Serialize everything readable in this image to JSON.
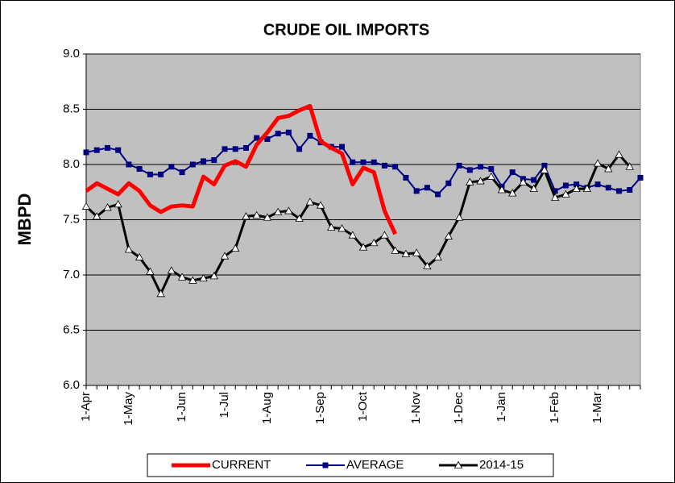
{
  "chart_data": {
    "type": "line",
    "title": "CRUDE OIL IMPORTS",
    "y_label": "MBPD",
    "categories": [
      "1-Apr",
      null,
      null,
      null,
      "1-May",
      null,
      null,
      null,
      null,
      "1-Jun",
      null,
      null,
      null,
      "1-Jul",
      null,
      null,
      null,
      "1-Aug",
      null,
      null,
      null,
      null,
      "1-Sep",
      null,
      null,
      null,
      "1-Oct",
      null,
      null,
      null,
      null,
      "1-Nov",
      null,
      null,
      null,
      "1-Dec",
      null,
      null,
      null,
      "1-Jan",
      null,
      null,
      null,
      null,
      "1-Feb",
      null,
      null,
      null,
      "1-Mar",
      null,
      null,
      null,
      null
    ],
    "series": [
      {
        "name": "CURRENT",
        "color": "#ff0000",
        "marker": "none",
        "values": [
          7.76,
          7.83,
          7.78,
          7.73,
          7.83,
          7.76,
          7.63,
          7.57,
          7.62,
          7.63,
          7.62,
          7.89,
          7.82,
          7.99,
          8.03,
          7.98,
          8.18,
          8.29,
          8.42,
          8.44,
          8.49,
          8.53,
          8.21,
          8.15,
          8.1,
          7.82,
          7.97,
          7.93,
          7.58,
          7.37,
          null,
          null,
          null,
          null,
          null,
          null,
          null,
          null,
          null,
          null,
          null,
          null,
          null,
          null,
          null,
          null,
          null,
          null,
          null,
          null,
          null,
          null,
          null
        ]
      },
      {
        "name": "AVERAGE",
        "color": "#000080",
        "marker": "square",
        "values": [
          8.11,
          8.13,
          8.15,
          8.13,
          8.0,
          7.96,
          7.91,
          7.91,
          7.98,
          7.93,
          8.0,
          8.03,
          8.04,
          8.14,
          8.14,
          8.15,
          8.24,
          8.23,
          8.28,
          8.29,
          8.14,
          8.26,
          8.2,
          8.16,
          8.16,
          8.02,
          8.02,
          8.02,
          7.99,
          7.98,
          7.88,
          7.76,
          7.79,
          7.73,
          7.83,
          7.99,
          7.95,
          7.98,
          7.96,
          7.8,
          7.93,
          7.87,
          7.86,
          7.99,
          7.76,
          7.81,
          7.82,
          7.79,
          7.82,
          7.79,
          7.76,
          7.77,
          7.88
        ]
      },
      {
        "name": "2014-15",
        "color": "#000000",
        "marker": "triangle",
        "values": [
          7.62,
          7.53,
          7.61,
          7.64,
          7.23,
          7.16,
          7.03,
          6.83,
          7.04,
          6.98,
          6.95,
          6.97,
          6.99,
          7.17,
          7.24,
          7.53,
          7.54,
          7.52,
          7.57,
          7.58,
          7.51,
          7.66,
          7.63,
          7.43,
          7.42,
          7.36,
          7.25,
          7.29,
          7.36,
          7.22,
          7.19,
          7.2,
          7.08,
          7.16,
          7.35,
          7.52,
          7.84,
          7.85,
          7.89,
          7.77,
          7.74,
          7.84,
          7.78,
          7.95,
          7.7,
          7.73,
          7.78,
          7.78,
          8.01,
          7.96,
          8.09,
          7.98,
          null
        ]
      }
    ],
    "ylim": [
      6,
      9
    ],
    "yticks": [
      {
        "value": 6,
        "label": "6.0"
      },
      {
        "value": 6.5,
        "label": "6.5"
      },
      {
        "value": 7,
        "label": "7.0"
      },
      {
        "value": 7.5,
        "label": "7.5"
      },
      {
        "value": 8,
        "label": "8.0"
      },
      {
        "value": 8.5,
        "label": "8.5"
      },
      {
        "value": 9,
        "label": "9.0"
      }
    ],
    "grid": true,
    "legend": "bottom",
    "plot_background": "#c0c0c0"
  }
}
